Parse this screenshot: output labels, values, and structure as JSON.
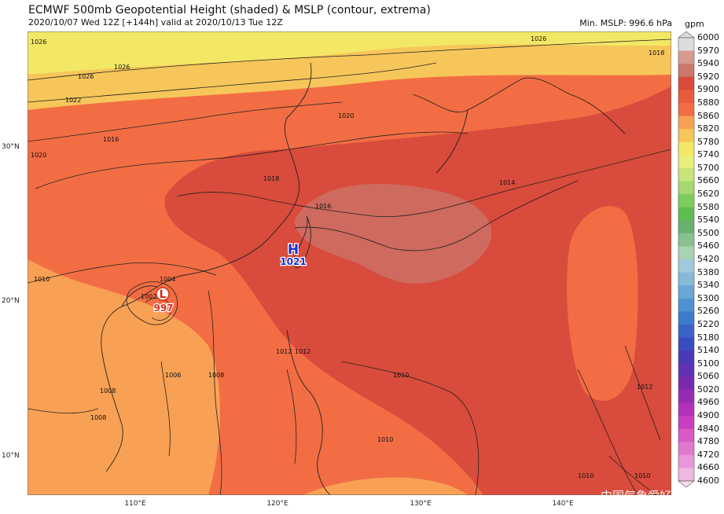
{
  "header": {
    "title": "ECMWF 500mb Geopotential Height (shaded) & MSLP (contour, extrema)",
    "subtitle": "2020/10/07 Wed 12Z [+144h] valid at 2020/10/13 Tue 12Z",
    "min_mslp": "Min. MSLP: 996.6 hPa",
    "units": "gpm"
  },
  "map": {
    "lat_labels": [
      "30°N",
      "20°N",
      "10°N"
    ],
    "lon_labels": [
      "110°E",
      "120°E",
      "130°E",
      "140°E"
    ],
    "high": {
      "symbol": "H",
      "value": "1021"
    },
    "low": {
      "symbol": "L",
      "value": "997"
    },
    "contour_labels": [
      "1026",
      "1026",
      "1026",
      "1026",
      "1022",
      "1020",
      "1020",
      "1018",
      "1018",
      "1016",
      "1016",
      "1014",
      "1012",
      "1012",
      "1012",
      "1010",
      "1010",
      "1010",
      "1010",
      "1010",
      "1008",
      "1008",
      "1008",
      "1006",
      "1004",
      "1002"
    ],
    "colors": {
      "h5880": "#f26d43",
      "h5900": "#d94b3c",
      "h5920": "#cf6a5e",
      "h5820": "#f8a154",
      "h5780": "#f7c65a",
      "h5740": "#f3e865"
    }
  },
  "colorbar": {
    "levels": [
      "6000",
      "5970",
      "5940",
      "5920",
      "5900",
      "5880",
      "5860",
      "5820",
      "5780",
      "5740",
      "5700",
      "5660",
      "5620",
      "5580",
      "5540",
      "5500",
      "5460",
      "5420",
      "5380",
      "5340",
      "5300",
      "5260",
      "5220",
      "5180",
      "5140",
      "5100",
      "5060",
      "5020",
      "4960",
      "4900",
      "4840",
      "4780",
      "4720",
      "4660",
      "4600"
    ],
    "colors": [
      "#dcdcdc",
      "#d89a8e",
      "#c9786a",
      "#d94b3c",
      "#e85b3d",
      "#f26d43",
      "#f8a154",
      "#f7c65a",
      "#f3e865",
      "#e8f07a",
      "#c8e57a",
      "#a5d86e",
      "#7fcc5e",
      "#5ebe50",
      "#66b070",
      "#88c090",
      "#a9d3b2",
      "#9fc9dc",
      "#86b9da",
      "#6aa6d6",
      "#4f92d2",
      "#3d7bcc",
      "#3a63c6",
      "#3a4cc0",
      "#4a3ab8",
      "#6232b4",
      "#7b2ab0",
      "#962bb3",
      "#b132b8",
      "#c93fbf",
      "#d85ac6",
      "#e179cf",
      "#e898d8",
      "#efb8e2",
      "#f7dcef"
    ]
  },
  "watermark": "中国气象爱好者"
}
